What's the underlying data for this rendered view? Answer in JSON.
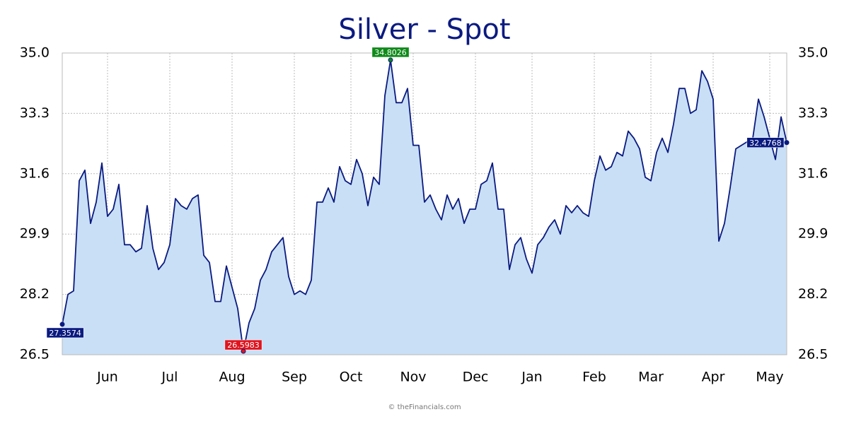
{
  "chart_data": {
    "type": "area",
    "title": "Silver - Spot",
    "footer": "© theFinancials.com",
    "categories": [
      null,
      null,
      null,
      null,
      null,
      null,
      null,
      null,
      "Jun",
      null,
      null,
      null,
      null,
      null,
      null,
      null,
      null,
      null,
      null,
      "Jul",
      null,
      null,
      null,
      null,
      null,
      null,
      null,
      null,
      null,
      null,
      "Aug",
      null,
      null,
      null,
      null,
      null,
      null,
      null,
      null,
      null,
      null,
      "Sep",
      null,
      null,
      null,
      null,
      null,
      null,
      null,
      null,
      null,
      "Oct",
      null,
      null,
      null,
      null,
      null,
      null,
      null,
      null,
      null,
      null,
      "Nov",
      null,
      null,
      null,
      null,
      null,
      null,
      null,
      null,
      null,
      null,
      "Dec",
      null,
      null,
      null,
      null,
      null,
      null,
      null,
      null,
      null,
      "Jan",
      null,
      null,
      null,
      null,
      null,
      null,
      null,
      null,
      null,
      null,
      "Feb",
      null,
      null,
      null,
      null,
      null,
      null,
      null,
      null,
      null,
      "Mar",
      null,
      null,
      null,
      null,
      null,
      null,
      null,
      null,
      null,
      null,
      "Apr",
      null,
      null,
      null,
      null,
      null,
      null,
      null,
      null,
      null,
      "May",
      null,
      null,
      null
    ],
    "series": [
      {
        "color": "#0a1a80",
        "fill": "#c9dff6",
        "values": [
          27.3574,
          28.2,
          28.3,
          31.4,
          31.7,
          30.2,
          30.8,
          31.9,
          30.4,
          30.6,
          31.3,
          29.6,
          29.6,
          29.4,
          29.5,
          30.7,
          29.5,
          28.9,
          29.1,
          29.6,
          30.9,
          30.7,
          30.6,
          30.9,
          31.0,
          29.3,
          29.1,
          28.0,
          28.0,
          29.0,
          28.4,
          27.8,
          26.5983,
          27.4,
          27.8,
          28.6,
          28.9,
          29.4,
          29.6,
          29.8,
          28.7,
          28.2,
          28.3,
          28.2,
          28.6,
          30.8,
          30.8,
          31.2,
          30.8,
          31.8,
          31.4,
          31.3,
          32.0,
          31.6,
          30.7,
          31.5,
          31.3,
          33.8,
          34.8026,
          33.6,
          33.6,
          34.0,
          32.4,
          32.4,
          30.8,
          31.0,
          30.6,
          30.3,
          31.0,
          30.6,
          30.9,
          30.2,
          30.6,
          30.6,
          31.3,
          31.4,
          31.9,
          30.6,
          30.6,
          28.9,
          29.6,
          29.8,
          29.2,
          28.8,
          29.6,
          29.8,
          30.1,
          30.3,
          29.9,
          30.7,
          30.5,
          30.7,
          30.5,
          30.4,
          31.4,
          32.1,
          31.7,
          31.8,
          32.2,
          32.1,
          32.8,
          32.6,
          32.3,
          31.5,
          31.4,
          32.2,
          32.6,
          32.2,
          33.0,
          34.0,
          34.0,
          33.3,
          33.4,
          34.5,
          34.2,
          33.7,
          29.7,
          30.2,
          31.2,
          32.3,
          32.4,
          32.5,
          32.6,
          33.7,
          33.2,
          32.6,
          32.0,
          33.2,
          32.4768
        ]
      }
    ],
    "ylim": [
      26.5,
      35
    ],
    "yticks": [
      26.5,
      28.2,
      29.9,
      31.6,
      33.3,
      {
        "value": 35,
        "label": "35.0"
      }
    ],
    "grid": true
  }
}
